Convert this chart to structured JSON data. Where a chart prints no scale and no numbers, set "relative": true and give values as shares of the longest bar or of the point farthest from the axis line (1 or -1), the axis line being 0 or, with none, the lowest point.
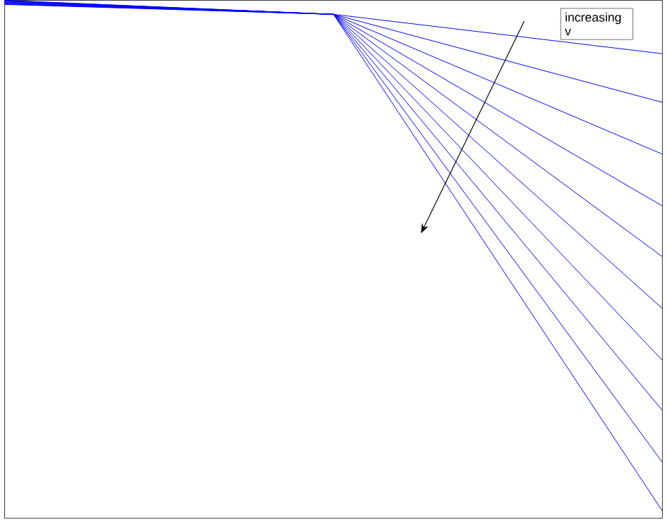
{
  "chart_data": {
    "type": "line",
    "relative": true,
    "categories": [
      null,
      null,
      null
    ],
    "series": [
      {
        "color": "#0000ff",
        "values": [
          0.992,
          0.973,
          0.897
        ]
      },
      {
        "color": "#0000ff",
        "values": [
          0.993,
          0.973,
          0.803
        ]
      },
      {
        "color": "#0000ff",
        "values": [
          0.994,
          0.973,
          0.703
        ]
      },
      {
        "color": "#0000ff",
        "values": [
          0.995,
          0.973,
          0.603
        ]
      },
      {
        "color": "#0000ff",
        "values": [
          0.996,
          0.973,
          0.505
        ]
      },
      {
        "color": "#0000ff",
        "values": [
          0.997,
          0.973,
          0.405
        ]
      },
      {
        "color": "#0000ff",
        "values": [
          0.998,
          0.973,
          0.305
        ]
      },
      {
        "color": "#0000ff",
        "values": [
          0.999,
          0.973,
          0.208
        ]
      },
      {
        "color": "#0000ff",
        "values": [
          0.9995,
          0.973,
          0.108
        ]
      },
      {
        "color": "#0000ff",
        "values": [
          1.0,
          0.973,
          0.014
        ]
      }
    ],
    "annotations": [
      "increasing v"
    ],
    "grid": false,
    "marker": "none",
    "line_style": "solid"
  }
}
